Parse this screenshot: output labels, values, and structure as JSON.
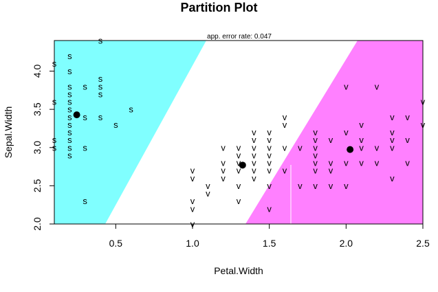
{
  "chart_data": {
    "type": "scatter",
    "title": "Partition Plot",
    "subtitle": "app. error rate: 0.047",
    "xlabel": "Petal.Width",
    "ylabel": "Sepal.Width",
    "xlim": [
      0.1,
      2.5
    ],
    "ylim": [
      2.0,
      4.4
    ],
    "x_ticks": [
      "0.5",
      "1.0",
      "1.5",
      "2.0",
      "2.5"
    ],
    "y_ticks": [
      "2.0",
      "2.5",
      "3.0",
      "3.5",
      "4.0"
    ],
    "grid": false,
    "regions": [
      {
        "label": "s",
        "color": "#80FFFF"
      },
      {
        "label": "",
        "color": "#FFFFFF"
      },
      {
        "label": "v",
        "color": "#FF80FF"
      }
    ],
    "centroids": [
      {
        "x": 0.246,
        "y": 3.428
      },
      {
        "x": 1.326,
        "y": 2.77
      },
      {
        "x": 2.026,
        "y": 2.974
      }
    ],
    "colors": {
      "correct": "#000000",
      "misclassified": "#FF0000",
      "centroid": "#000000"
    },
    "points": [
      {
        "x": 0.4,
        "y": 4.4,
        "label": "s"
      },
      {
        "x": 0.2,
        "y": 4.2,
        "label": "s"
      },
      {
        "x": 0.1,
        "y": 4.1,
        "label": "s"
      },
      {
        "x": 0.2,
        "y": 4.0,
        "label": "s"
      },
      {
        "x": 0.4,
        "y": 3.9,
        "label": "s"
      },
      {
        "x": 0.2,
        "y": 3.8,
        "label": "s"
      },
      {
        "x": 0.3,
        "y": 3.8,
        "label": "s"
      },
      {
        "x": 0.4,
        "y": 3.8,
        "label": "s"
      },
      {
        "x": 0.2,
        "y": 3.7,
        "label": "s"
      },
      {
        "x": 0.4,
        "y": 3.7,
        "label": "s"
      },
      {
        "x": 0.2,
        "y": 3.6,
        "label": "s"
      },
      {
        "x": 0.1,
        "y": 3.6,
        "label": "s"
      },
      {
        "x": 0.2,
        "y": 3.5,
        "label": "s"
      },
      {
        "x": 0.6,
        "y": 3.5,
        "label": "s"
      },
      {
        "x": 0.2,
        "y": 3.4,
        "label": "s"
      },
      {
        "x": 0.3,
        "y": 3.4,
        "label": "s"
      },
      {
        "x": 0.4,
        "y": 3.4,
        "label": "s"
      },
      {
        "x": 0.5,
        "y": 3.3,
        "label": "s"
      },
      {
        "x": 0.2,
        "y": 3.3,
        "label": "s"
      },
      {
        "x": 0.2,
        "y": 3.2,
        "label": "s"
      },
      {
        "x": 0.2,
        "y": 3.1,
        "label": "s"
      },
      {
        "x": 0.1,
        "y": 3.1,
        "label": "s"
      },
      {
        "x": 0.2,
        "y": 3.0,
        "label": "s"
      },
      {
        "x": 0.1,
        "y": 3.0,
        "label": "s"
      },
      {
        "x": 0.3,
        "y": 3.0,
        "label": "s"
      },
      {
        "x": 0.2,
        "y": 2.9,
        "label": "s"
      },
      {
        "x": 0.3,
        "y": 2.3,
        "label": "s"
      },
      {
        "x": 1.0,
        "y": 2.7,
        "label": "v"
      },
      {
        "x": 1.0,
        "y": 2.6,
        "label": "v"
      },
      {
        "x": 1.0,
        "y": 2.3,
        "label": "v"
      },
      {
        "x": 1.0,
        "y": 2.2,
        "label": "v"
      },
      {
        "x": 1.0,
        "y": 2.0,
        "label": "v"
      },
      {
        "x": 1.1,
        "y": 2.5,
        "label": "v"
      },
      {
        "x": 1.1,
        "y": 2.4,
        "label": "v"
      },
      {
        "x": 1.2,
        "y": 3.0,
        "label": "v"
      },
      {
        "x": 1.2,
        "y": 2.8,
        "label": "v"
      },
      {
        "x": 1.2,
        "y": 2.7,
        "label": "v"
      },
      {
        "x": 1.2,
        "y": 2.6,
        "label": "v"
      },
      {
        "x": 1.3,
        "y": 3.0,
        "label": "v"
      },
      {
        "x": 1.3,
        "y": 2.9,
        "label": "v"
      },
      {
        "x": 1.3,
        "y": 2.8,
        "label": "v"
      },
      {
        "x": 1.3,
        "y": 2.7,
        "label": "v"
      },
      {
        "x": 1.3,
        "y": 2.5,
        "label": "v"
      },
      {
        "x": 1.3,
        "y": 2.3,
        "label": "v"
      },
      {
        "x": 1.4,
        "y": 3.2,
        "label": "v"
      },
      {
        "x": 1.4,
        "y": 3.1,
        "label": "v"
      },
      {
        "x": 1.4,
        "y": 3.0,
        "label": "v"
      },
      {
        "x": 1.4,
        "y": 2.9,
        "label": "v"
      },
      {
        "x": 1.4,
        "y": 2.8,
        "label": "v"
      },
      {
        "x": 1.4,
        "y": 2.7,
        "label": "v"
      },
      {
        "x": 1.4,
        "y": 2.6,
        "label": "v",
        "misclassified": true
      },
      {
        "x": 1.5,
        "y": 3.2,
        "label": "v"
      },
      {
        "x": 1.5,
        "y": 3.1,
        "label": "v"
      },
      {
        "x": 1.5,
        "y": 3.0,
        "label": "v"
      },
      {
        "x": 1.5,
        "y": 2.9,
        "label": "v"
      },
      {
        "x": 1.5,
        "y": 2.8,
        "label": "v",
        "misclassified": true
      },
      {
        "x": 1.5,
        "y": 2.7,
        "label": "v",
        "misclassified": true
      },
      {
        "x": 1.5,
        "y": 2.5,
        "label": "v"
      },
      {
        "x": 1.5,
        "y": 2.2,
        "label": "v"
      },
      {
        "x": 1.6,
        "y": 3.4,
        "label": "v"
      },
      {
        "x": 1.6,
        "y": 3.3,
        "label": "v"
      },
      {
        "x": 1.6,
        "y": 3.0,
        "label": "v",
        "misclassified": true
      },
      {
        "x": 1.6,
        "y": 2.7,
        "label": "v"
      },
      {
        "x": 1.7,
        "y": 3.0,
        "label": "v",
        "misclassified": true
      },
      {
        "x": 1.7,
        "y": 2.5,
        "label": "v"
      },
      {
        "x": 1.8,
        "y": 3.2,
        "label": "v"
      },
      {
        "x": 1.8,
        "y": 3.1,
        "label": "v"
      },
      {
        "x": 1.8,
        "y": 3.0,
        "label": "v"
      },
      {
        "x": 1.8,
        "y": 2.9,
        "label": "v"
      },
      {
        "x": 1.8,
        "y": 2.8,
        "label": "v"
      },
      {
        "x": 1.8,
        "y": 2.7,
        "label": "v"
      },
      {
        "x": 1.8,
        "y": 2.5,
        "label": "v"
      },
      {
        "x": 1.9,
        "y": 3.1,
        "label": "v"
      },
      {
        "x": 1.9,
        "y": 2.8,
        "label": "v"
      },
      {
        "x": 1.9,
        "y": 2.7,
        "label": "v"
      },
      {
        "x": 1.9,
        "y": 2.5,
        "label": "v"
      },
      {
        "x": 2.0,
        "y": 3.8,
        "label": "v"
      },
      {
        "x": 2.0,
        "y": 3.2,
        "label": "v"
      },
      {
        "x": 2.0,
        "y": 2.8,
        "label": "v"
      },
      {
        "x": 2.0,
        "y": 2.5,
        "label": "v"
      },
      {
        "x": 2.1,
        "y": 3.3,
        "label": "v"
      },
      {
        "x": 2.1,
        "y": 3.1,
        "label": "v"
      },
      {
        "x": 2.1,
        "y": 3.0,
        "label": "v"
      },
      {
        "x": 2.1,
        "y": 2.8,
        "label": "v"
      },
      {
        "x": 2.2,
        "y": 3.8,
        "label": "v"
      },
      {
        "x": 2.2,
        "y": 3.0,
        "label": "v"
      },
      {
        "x": 2.2,
        "y": 2.8,
        "label": "v"
      },
      {
        "x": 2.3,
        "y": 3.4,
        "label": "v"
      },
      {
        "x": 2.3,
        "y": 3.2,
        "label": "v"
      },
      {
        "x": 2.3,
        "y": 3.1,
        "label": "v"
      },
      {
        "x": 2.3,
        "y": 3.0,
        "label": "v"
      },
      {
        "x": 2.3,
        "y": 2.6,
        "label": "v"
      },
      {
        "x": 2.4,
        "y": 3.4,
        "label": "v"
      },
      {
        "x": 2.4,
        "y": 3.1,
        "label": "v"
      },
      {
        "x": 2.4,
        "y": 2.8,
        "label": "v"
      },
      {
        "x": 2.5,
        "y": 3.6,
        "label": "v"
      },
      {
        "x": 2.5,
        "y": 3.3,
        "label": "v"
      }
    ]
  }
}
